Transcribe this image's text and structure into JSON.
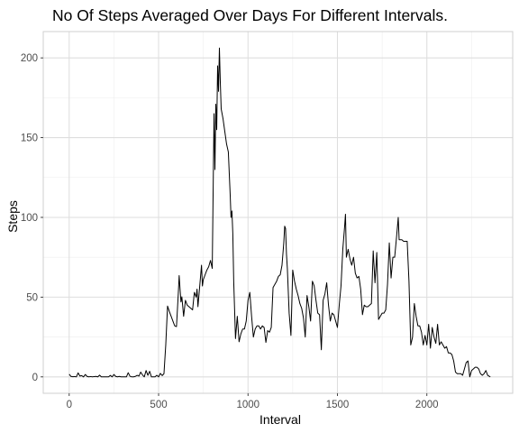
{
  "chart_data": {
    "type": "line",
    "title": "No Of Steps Averaged Over Days For Different Intervals.",
    "xlabel": "Interval",
    "ylabel": "Steps",
    "xlim": [
      -145,
      2480
    ],
    "ylim": [
      -10.3,
      216.5
    ],
    "x_ticks": [
      0,
      500,
      1000,
      1500,
      2000
    ],
    "x_tick_labels": [
      "0",
      "500",
      "1000",
      "1500",
      "2000"
    ],
    "y_ticks": [
      0,
      50,
      100,
      150,
      200
    ],
    "y_tick_labels": [
      "0",
      "50",
      "100",
      "150",
      "200"
    ],
    "grid": true,
    "legend": "none",
    "series": [
      {
        "color": "#000000",
        "x": [
          0,
          10,
          20,
          30,
          40,
          50,
          60,
          70,
          80,
          90,
          100,
          110,
          120,
          130,
          140,
          150,
          160,
          170,
          180,
          190,
          200,
          210,
          220,
          230,
          240,
          250,
          260,
          270,
          280,
          290,
          300,
          310,
          320,
          330,
          340,
          350,
          360,
          370,
          380,
          390,
          400,
          410,
          420,
          430,
          440,
          450,
          460,
          470,
          480,
          490,
          500,
          510,
          520,
          530,
          540,
          550,
          560,
          570,
          580,
          590,
          600,
          610,
          615,
          620,
          625,
          630,
          640,
          650,
          660,
          670,
          680,
          690,
          700,
          710,
          715,
          720,
          730,
          740,
          745,
          750,
          760,
          770,
          780,
          790,
          800,
          810,
          815,
          820,
          825,
          830,
          835,
          840,
          845,
          850,
          860,
          870,
          880,
          890,
          900,
          905,
          910,
          915,
          920,
          930,
          940,
          950,
          960,
          970,
          980,
          990,
          1000,
          1010,
          1020,
          1030,
          1040,
          1050,
          1060,
          1070,
          1080,
          1090,
          1100,
          1110,
          1120,
          1130,
          1140,
          1150,
          1160,
          1170,
          1180,
          1190,
          1200,
          1205,
          1210,
          1215,
          1220,
          1230,
          1240,
          1250,
          1260,
          1270,
          1280,
          1290,
          1300,
          1310,
          1320,
          1330,
          1340,
          1350,
          1360,
          1370,
          1380,
          1390,
          1400,
          1410,
          1420,
          1430,
          1440,
          1450,
          1460,
          1470,
          1480,
          1490,
          1500,
          1510,
          1520,
          1530,
          1540,
          1545,
          1550,
          1560,
          1570,
          1580,
          1590,
          1600,
          1610,
          1620,
          1630,
          1640,
          1650,
          1660,
          1670,
          1680,
          1690,
          1700,
          1710,
          1720,
          1730,
          1740,
          1750,
          1760,
          1770,
          1780,
          1790,
          1800,
          1810,
          1820,
          1830,
          1840,
          1845,
          1850,
          1860,
          1870,
          1880,
          1890,
          1900,
          1910,
          1920,
          1930,
          1940,
          1950,
          1960,
          1970,
          1980,
          1990,
          2000,
          2010,
          2020,
          2030,
          2040,
          2050,
          2060,
          2070,
          2080,
          2090,
          2100,
          2110,
          2120,
          2130,
          2140,
          2150,
          2160,
          2170,
          2180,
          2190,
          2200,
          2210,
          2220,
          2230,
          2240,
          2250,
          2260,
          2270,
          2280,
          2290,
          2300,
          2310,
          2320,
          2330,
          2340,
          2355
        ],
        "y": [
          1.7,
          0.3,
          0.1,
          0.2,
          0.0,
          2.5,
          0.5,
          0.8,
          0.0,
          1.5,
          0.3,
          0.0,
          0.2,
          0.0,
          0.2,
          0.3,
          0.0,
          1.1,
          0.0,
          0.0,
          0.0,
          0.0,
          0.0,
          0.9,
          0.0,
          1.5,
          0.3,
          0.0,
          0.3,
          0.0,
          0.0,
          0.0,
          0.0,
          2.6,
          0.4,
          0.0,
          0.0,
          0.3,
          1.0,
          0.5,
          3.0,
          1.2,
          0.0,
          4.0,
          1.0,
          3.5,
          0.0,
          0.0,
          0.0,
          1.0,
          0.0,
          2.2,
          0.8,
          2.0,
          20.0,
          44.4,
          41.0,
          38.0,
          35.0,
          32.0,
          31.5,
          52.0,
          63.5,
          55.0,
          47.0,
          50.2,
          38.0,
          48.0,
          45.0,
          44.0,
          43.0,
          42.0,
          53.0,
          50.0,
          55.0,
          44.0,
          57.0,
          70.0,
          57.0,
          61.0,
          64.0,
          67.0,
          69.0,
          73.0,
          68.0,
          165.0,
          130.0,
          171.0,
          155.0,
          195.0,
          179.0,
          206.2,
          185.0,
          168.0,
          162.0,
          154.0,
          146.0,
          141.0,
          115.0,
          100.0,
          104.0,
          90.0,
          60.0,
          24.0,
          38.0,
          22.0,
          27.0,
          30.0,
          30.0,
          35.0,
          48.0,
          53.0,
          38.0,
          25.0,
          30.0,
          32.0,
          32.0,
          30.0,
          32.0,
          31.0,
          21.6,
          29.0,
          28.0,
          31.0,
          56.0,
          58.0,
          60.0,
          63.0,
          64.0,
          70.0,
          84.0,
          94.5,
          93.0,
          77.0,
          68.0,
          40.0,
          26.0,
          67.0,
          60.0,
          55.0,
          51.0,
          46.0,
          43.0,
          37.0,
          25.0,
          51.0,
          44.0,
          35.0,
          60.0,
          57.0,
          48.0,
          40.0,
          39.0,
          17.0,
          48.0,
          52.0,
          59.0,
          45.0,
          35.0,
          40.0,
          39.0,
          35.0,
          31.0,
          45.0,
          57.0,
          80.0,
          94.0,
          102.0,
          75.0,
          80.0,
          74.0,
          70.0,
          75.0,
          65.0,
          62.0,
          63.0,
          55.0,
          39.0,
          45.0,
          44.0,
          44.0,
          45.0,
          46.0,
          79.0,
          59.0,
          78.0,
          36.0,
          38.0,
          40.0,
          40.0,
          42.0,
          58.0,
          84.0,
          62.0,
          75.0,
          75.0,
          87.0,
          100.0,
          86.0,
          86.0,
          86.0,
          85.0,
          85.0,
          85.0,
          60.0,
          20.0,
          25.0,
          46.0,
          38.0,
          32.0,
          32.0,
          28.0,
          20.0,
          26.0,
          20.0,
          33.0,
          18.0,
          31.0,
          25.0,
          21.0,
          33.0,
          20.0,
          22.0,
          20.0,
          18.0,
          19.0,
          15.0,
          15.0,
          14.0,
          10.0,
          3.0,
          2.0,
          2.0,
          2.0,
          1.0,
          5.0,
          9.0,
          10.0,
          0.0,
          4.0,
          5.0,
          6.0,
          6.0,
          5.0,
          2.0,
          1.0,
          2.0,
          4.0,
          1.0,
          0.0
        ]
      }
    ]
  }
}
